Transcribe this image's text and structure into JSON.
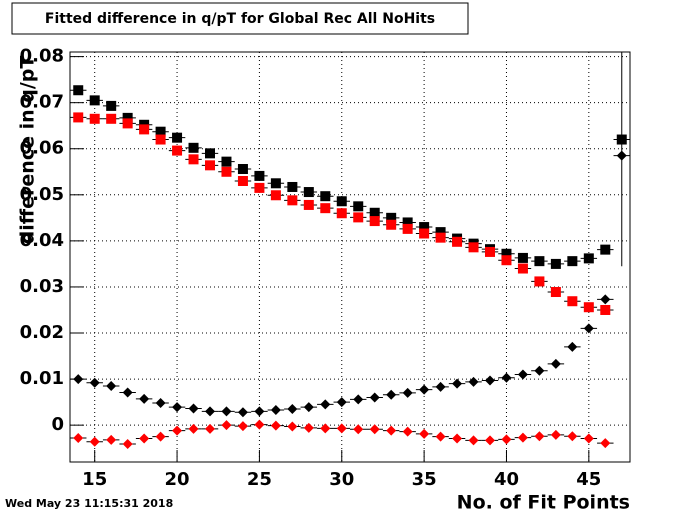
{
  "chart_data": {
    "type": "scatter",
    "title": "Fitted difference in q/pT for Global Rec All NoHits",
    "x_label": "No. of Fit Points",
    "y_label": "difference in q/pT",
    "timestamp": "Wed May 23 11:15:31 2018",
    "grid": true,
    "xlim": [
      13.5,
      47.5
    ],
    "ylim": [
      -0.008,
      0.081
    ],
    "xticks": [
      15,
      20,
      25,
      30,
      35,
      40,
      45
    ],
    "yticks": [
      0,
      0.01,
      0.02,
      0.03,
      0.04,
      0.05,
      0.06,
      0.07,
      0.08
    ],
    "x": [
      14,
      15,
      16,
      17,
      18,
      19,
      20,
      21,
      22,
      23,
      24,
      25,
      26,
      27,
      28,
      29,
      30,
      31,
      32,
      33,
      34,
      35,
      36,
      37,
      38,
      39,
      40,
      41,
      42,
      43,
      44,
      45,
      46,
      47
    ],
    "series": [
      {
        "color": "#000000",
        "marker": "square",
        "values": [
          0.0727,
          0.0705,
          0.0693,
          0.0667,
          0.0652,
          0.0637,
          0.0624,
          0.0602,
          0.059,
          0.0572,
          0.0556,
          0.0541,
          0.0525,
          0.0517,
          0.0506,
          0.0497,
          0.0486,
          0.0475,
          0.0461,
          0.045,
          0.044,
          0.043,
          0.0419,
          0.0405,
          0.0394,
          0.0382,
          0.0372,
          0.0363,
          0.0356,
          0.035,
          0.0356,
          0.0362,
          0.0381,
          0.062
        ]
      },
      {
        "color": "#ff0000",
        "marker": "square",
        "values": [
          0.0668,
          0.0665,
          0.0665,
          0.0655,
          0.0642,
          0.062,
          0.0596,
          0.0577,
          0.0564,
          0.055,
          0.053,
          0.0515,
          0.0499,
          0.0488,
          0.0478,
          0.0471,
          0.046,
          0.0451,
          0.0443,
          0.0435,
          0.0426,
          0.0416,
          0.0407,
          0.0398,
          0.0386,
          0.0376,
          0.0358,
          0.034,
          0.0312,
          0.0289,
          0.0269,
          0.0256,
          0.025,
          null
        ]
      },
      {
        "color": "#000000",
        "marker": "diamond",
        "values": [
          0.01,
          0.0092,
          0.0085,
          0.0071,
          0.0057,
          0.0048,
          0.0039,
          0.0036,
          0.003,
          0.003,
          0.0028,
          0.003,
          0.0033,
          0.0035,
          0.0039,
          0.0045,
          0.005,
          0.0056,
          0.006,
          0.0066,
          0.007,
          0.0077,
          0.0083,
          0.009,
          0.0094,
          0.0097,
          0.0103,
          0.011,
          0.0118,
          0.0133,
          0.017,
          0.021,
          0.0273,
          0.0585
        ],
        "errors": [
          null,
          null,
          null,
          null,
          null,
          null,
          null,
          null,
          null,
          null,
          null,
          null,
          null,
          null,
          null,
          null,
          null,
          null,
          null,
          null,
          null,
          null,
          null,
          null,
          null,
          null,
          null,
          null,
          null,
          null,
          null,
          null,
          null,
          0.024
        ]
      },
      {
        "color": "#ff0000",
        "marker": "diamond",
        "values": [
          -0.0028,
          -0.0036,
          -0.0032,
          -0.0041,
          -0.0029,
          -0.0025,
          -0.0012,
          -0.0008,
          -0.0008,
          0.0,
          -0.0002,
          0.0001,
          -0.0001,
          -0.0003,
          -0.0006,
          -0.0007,
          -0.0007,
          -0.0009,
          -0.0009,
          -0.0012,
          -0.0014,
          -0.0019,
          -0.0025,
          -0.0029,
          -0.0033,
          -0.0033,
          -0.0031,
          -0.0027,
          -0.0024,
          -0.0021,
          -0.0024,
          -0.0029,
          -0.0039,
          null
        ]
      }
    ]
  }
}
